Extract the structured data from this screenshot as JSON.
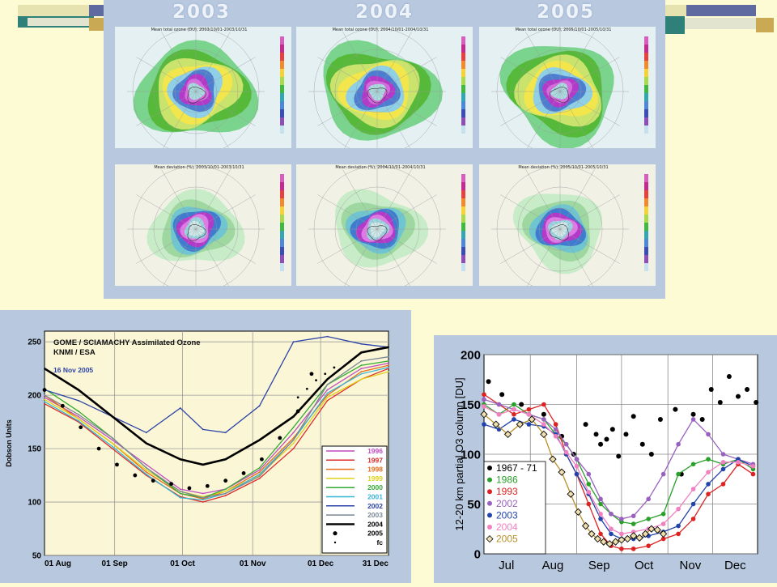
{
  "palette": {
    "background": "#fdfbd3",
    "panel": "#b7c8df"
  },
  "map_panel": {
    "years": [
      "2003",
      "2004",
      "2005"
    ],
    "top_row_titles": [
      "Mean total ozone (DU), 2003/10/01-2003/10/31",
      "Mean total ozone (DU), 2004/10/01-2004/10/31",
      "Mean total ozone (DU), 2005/10/01-2005/10/31"
    ],
    "bottom_row_titles": [
      "Mean deviation (%), 2003/10/01-2003/10/31",
      "Mean deviation (%), 2004/10/01-2004/10/31",
      "Mean deviation (%), 2005/10/01-2005/10/31"
    ]
  },
  "chart_data": [
    {
      "type": "line",
      "title": "GOME / SCIAMACHY Assimilated Ozone",
      "subtitle": "KNMI / ESA",
      "date_note": "16 Nov 2005",
      "ylabel": "Dobson Units",
      "xlabel": "",
      "ylim": [
        50,
        260
      ],
      "yticks": [
        50,
        100,
        150,
        200,
        250
      ],
      "xlim": [
        0,
        152
      ],
      "x_unit": "days after 01 Aug",
      "xtick_positions": [
        0,
        31,
        61,
        92,
        122,
        152
      ],
      "xtick_labels": [
        "01 Aug",
        "01 Sep",
        "01 Oct",
        "01 Nov",
        "01 Dec",
        "31 Dec"
      ],
      "grid": true,
      "legend_position": "bottom-right",
      "series": [
        {
          "name": "1996",
          "color": "#c04cc0",
          "style": "line",
          "x": [
            0,
            15,
            30,
            45,
            60,
            70,
            80,
            95,
            110,
            125,
            140,
            152
          ],
          "y": [
            198,
            180,
            158,
            135,
            112,
            108,
            112,
            130,
            165,
            205,
            225,
            230
          ]
        },
        {
          "name": "1997",
          "color": "#dd2a2a",
          "style": "line",
          "x": [
            0,
            15,
            30,
            45,
            60,
            70,
            80,
            95,
            110,
            125,
            140,
            152
          ],
          "y": [
            192,
            175,
            150,
            125,
            105,
            100,
            106,
            122,
            150,
            195,
            215,
            225
          ]
        },
        {
          "name": "1998",
          "color": "#e86b1a",
          "style": "line",
          "x": [
            0,
            15,
            30,
            45,
            60,
            70,
            80,
            95,
            110,
            125,
            140,
            152
          ],
          "y": [
            200,
            178,
            155,
            128,
            108,
            103,
            110,
            128,
            160,
            200,
            222,
            228
          ]
        },
        {
          "name": "1999",
          "color": "#e0d21a",
          "style": "line",
          "x": [
            0,
            15,
            30,
            45,
            60,
            70,
            80,
            95,
            110,
            125,
            140,
            152
          ],
          "y": [
            196,
            178,
            155,
            130,
            110,
            105,
            110,
            125,
            155,
            198,
            215,
            222
          ]
        },
        {
          "name": "2000",
          "color": "#33aa33",
          "style": "line",
          "x": [
            0,
            15,
            30,
            45,
            60,
            70,
            80,
            95,
            110,
            125,
            140,
            152
          ],
          "y": [
            206,
            185,
            160,
            132,
            108,
            104,
            112,
            132,
            170,
            210,
            228,
            232
          ]
        },
        {
          "name": "2001",
          "color": "#37b6d6",
          "style": "line",
          "x": [
            0,
            15,
            30,
            45,
            60,
            70,
            80,
            95,
            110,
            125,
            140,
            152
          ],
          "y": [
            194,
            176,
            152,
            126,
            104,
            102,
            108,
            126,
            158,
            202,
            220,
            226
          ]
        },
        {
          "name": "2002",
          "color": "#2c43a8",
          "style": "line",
          "x": [
            0,
            15,
            30,
            45,
            60,
            70,
            80,
            95,
            110,
            125,
            140,
            152
          ],
          "y": [
            205,
            195,
            180,
            165,
            188,
            168,
            165,
            190,
            250,
            255,
            248,
            245
          ]
        },
        {
          "name": "2003",
          "color": "#7a8896",
          "style": "line",
          "x": [
            0,
            15,
            30,
            45,
            60,
            70,
            80,
            95,
            110,
            125,
            140,
            152
          ],
          "y": [
            200,
            182,
            160,
            132,
            110,
            104,
            108,
            124,
            158,
            210,
            232,
            236
          ]
        },
        {
          "name": "2004",
          "color": "#000000",
          "style": "thick",
          "x": [
            0,
            15,
            30,
            45,
            60,
            70,
            80,
            95,
            110,
            125,
            140,
            152
          ],
          "y": [
            225,
            205,
            180,
            155,
            140,
            135,
            140,
            158,
            180,
            215,
            240,
            245
          ]
        },
        {
          "name": "2005",
          "color": "#000000",
          "style": "dots",
          "x": [
            0,
            8,
            16,
            24,
            32,
            40,
            48,
            56,
            64,
            72,
            80,
            88,
            96,
            104,
            112,
            118
          ],
          "y": [
            205,
            190,
            170,
            150,
            135,
            125,
            120,
            117,
            113,
            115,
            120,
            127,
            140,
            160,
            185,
            220
          ]
        },
        {
          "name": "fc",
          "color": "#000000",
          "style": "smalldots",
          "x": [
            112,
            116,
            120,
            124,
            128
          ],
          "y": [
            198,
            206,
            214,
            220,
            226
          ]
        }
      ]
    },
    {
      "type": "line",
      "title": "",
      "ylabel": "12-20 km partial O3 column [DU]",
      "xlabel": "",
      "ylim": [
        0,
        200
      ],
      "yticks": [
        0,
        50,
        100,
        150,
        200
      ],
      "xlim": [
        0,
        183
      ],
      "x_unit": "days after 01 Jul",
      "xtick_labels": [
        "Jul",
        "Aug",
        "Sep",
        "Oct",
        "Nov",
        "Dec"
      ],
      "xtick_label_positions": [
        15,
        46,
        77,
        107,
        138,
        168
      ],
      "month_boundaries": [
        31,
        62,
        92,
        123,
        153
      ],
      "grid": true,
      "legend_position": "bottom-left",
      "series": [
        {
          "name": "1967 - 71",
          "color": "#000000",
          "style": "dots",
          "x": [
            3,
            12,
            25,
            40,
            52,
            60,
            68,
            75,
            78,
            82,
            86,
            90,
            95,
            100,
            106,
            112,
            118,
            128,
            132,
            140,
            146,
            152,
            158,
            164,
            170,
            176,
            182
          ],
          "y": [
            173,
            160,
            150,
            140,
            118,
            100,
            130,
            120,
            110,
            115,
            125,
            98,
            120,
            138,
            110,
            100,
            135,
            145,
            80,
            140,
            135,
            165,
            152,
            178,
            158,
            165,
            152
          ]
        },
        {
          "name": "1986",
          "color": "#2aa02a",
          "style": "line",
          "x": [
            0,
            10,
            20,
            30,
            40,
            48,
            55,
            62,
            70,
            78,
            85,
            92,
            100,
            110,
            120,
            130,
            140,
            150,
            160,
            170,
            180
          ],
          "y": [
            150,
            140,
            150,
            140,
            135,
            120,
            110,
            95,
            70,
            50,
            40,
            32,
            30,
            35,
            40,
            80,
            90,
            95,
            90,
            95,
            85
          ]
        },
        {
          "name": "1993",
          "color": "#dd2222",
          "style": "line",
          "x": [
            0,
            10,
            20,
            30,
            40,
            48,
            55,
            62,
            70,
            78,
            85,
            92,
            100,
            110,
            120,
            130,
            140,
            150,
            160,
            170,
            180
          ],
          "y": [
            160,
            150,
            140,
            145,
            150,
            130,
            100,
            80,
            50,
            20,
            8,
            5,
            5,
            8,
            15,
            20,
            35,
            60,
            70,
            90,
            80
          ]
        },
        {
          "name": "2002",
          "color": "#9a60c0",
          "style": "line",
          "x": [
            0,
            10,
            20,
            30,
            40,
            48,
            55,
            62,
            70,
            78,
            85,
            92,
            100,
            110,
            120,
            130,
            140,
            150,
            160,
            170,
            180
          ],
          "y": [
            155,
            150,
            145,
            140,
            135,
            125,
            110,
            95,
            80,
            55,
            40,
            35,
            38,
            55,
            80,
            110,
            135,
            120,
            100,
            95,
            90
          ]
        },
        {
          "name": "2003",
          "color": "#2244aa",
          "style": "line",
          "x": [
            0,
            10,
            20,
            30,
            40,
            48,
            55,
            62,
            70,
            78,
            85,
            92,
            100,
            110,
            120,
            130,
            140,
            150,
            160,
            170,
            180
          ],
          "y": [
            130,
            125,
            135,
            130,
            128,
            120,
            100,
            80,
            60,
            35,
            20,
            15,
            15,
            18,
            22,
            28,
            50,
            70,
            85,
            95,
            88
          ]
        },
        {
          "name": "2004",
          "color": "#f080c0",
          "style": "line",
          "x": [
            0,
            10,
            20,
            30,
            40,
            48,
            55,
            62,
            70,
            78,
            85,
            92,
            100,
            110,
            120,
            130,
            140,
            150,
            160,
            170,
            180
          ],
          "y": [
            148,
            140,
            145,
            140,
            130,
            118,
            102,
            88,
            62,
            40,
            25,
            20,
            22,
            25,
            30,
            45,
            65,
            82,
            92,
            92,
            88
          ]
        },
        {
          "name": "2005",
          "color": "#b8902a",
          "style": "diamonds",
          "x": [
            0,
            8,
            16,
            24,
            32,
            40,
            46,
            52,
            58,
            63,
            68,
            72,
            76,
            80,
            84,
            88,
            92,
            96,
            100,
            104,
            108,
            112,
            116,
            120
          ],
          "y": [
            140,
            130,
            120,
            130,
            135,
            120,
            95,
            82,
            60,
            42,
            28,
            20,
            15,
            12,
            10,
            12,
            14,
            15,
            18,
            16,
            20,
            25,
            24,
            20
          ]
        }
      ]
    }
  ]
}
